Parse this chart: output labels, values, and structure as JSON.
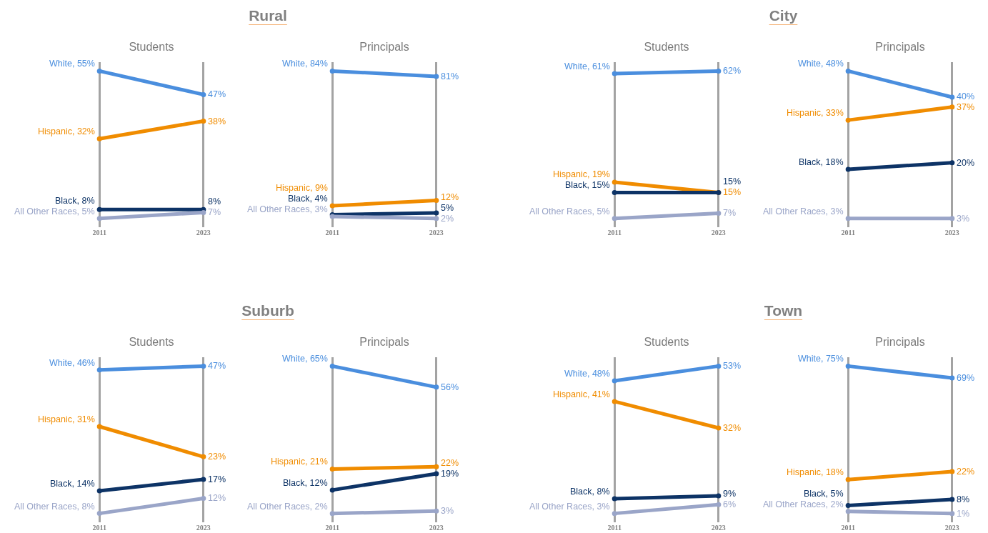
{
  "chart_data": [
    {
      "type": "line",
      "title": "Rural",
      "subtitle": "Students",
      "categories": [
        "2011",
        "2023"
      ],
      "grid": "x",
      "tick_labels": "x",
      "marker": "circle",
      "line_style": "solid",
      "legend": false,
      "series": [
        {
          "color": "#4a8ede",
          "values": [
            55,
            47
          ],
          "value_labels": [
            "White, 55%",
            "47%"
          ]
        },
        {
          "color": "#f08c00",
          "values": [
            32,
            38
          ],
          "value_labels": [
            "Hispanic, 32%",
            "38%"
          ]
        },
        {
          "color": "#0d3366",
          "values": [
            8,
            8
          ],
          "value_labels": [
            "Black, 8%",
            "8%"
          ]
        },
        {
          "color": "#9aa5c8",
          "values": [
            5,
            7
          ],
          "value_labels": [
            "All Other Races, 5%",
            "7%"
          ]
        }
      ]
    },
    {
      "type": "line",
      "subtitle": "Principals",
      "categories": [
        "2011",
        "2023"
      ],
      "grid": "x",
      "tick_labels": "x",
      "marker": "circle",
      "line_style": "solid",
      "legend": false,
      "series": [
        {
          "color": "#4a8ede",
          "values": [
            84,
            81
          ],
          "value_labels": [
            "White, 84%",
            "81%"
          ]
        },
        {
          "color": "#f08c00",
          "values": [
            9,
            12
          ],
          "value_labels": [
            "Hispanic, 9%",
            "12%"
          ]
        },
        {
          "color": "#0d3366",
          "values": [
            4,
            5
          ],
          "value_labels": [
            "Black, 4%",
            "5%"
          ]
        },
        {
          "color": "#9aa5c8",
          "values": [
            3,
            2
          ],
          "value_labels": [
            "All Other Races, 3%",
            "2%"
          ]
        }
      ]
    },
    {
      "type": "line",
      "title": "City",
      "subtitle": "Students",
      "categories": [
        "2011",
        "2023"
      ],
      "grid": "x",
      "tick_labels": "x",
      "marker": "circle",
      "line_style": "solid",
      "legend": false,
      "series": [
        {
          "color": "#4a8ede",
          "values": [
            61,
            62
          ],
          "value_labels": [
            "White, 61%",
            "62%"
          ]
        },
        {
          "color": "#f08c00",
          "values": [
            19,
            15
          ],
          "value_labels": [
            "Hispanic, 19%",
            "15%"
          ]
        },
        {
          "color": "#0d3366",
          "values": [
            15,
            15
          ],
          "value_labels": [
            "Black, 15%",
            "15%"
          ]
        },
        {
          "color": "#9aa5c8",
          "values": [
            5,
            7
          ],
          "value_labels": [
            "All Other Races, 5%",
            "7%"
          ]
        }
      ]
    },
    {
      "type": "line",
      "subtitle": "Principals",
      "categories": [
        "2011",
        "2023"
      ],
      "grid": "x",
      "tick_labels": "x",
      "marker": "circle",
      "line_style": "solid",
      "legend": false,
      "series": [
        {
          "color": "#4a8ede",
          "values": [
            48,
            40
          ],
          "value_labels": [
            "White, 48%",
            "40%"
          ]
        },
        {
          "color": "#f08c00",
          "values": [
            33,
            37
          ],
          "value_labels": [
            "Hispanic, 33%",
            "37%"
          ]
        },
        {
          "color": "#0d3366",
          "values": [
            18,
            20
          ],
          "value_labels": [
            "Black, 18%",
            "20%"
          ]
        },
        {
          "color": "#9aa5c8",
          "values": [
            3,
            3
          ],
          "value_labels": [
            "All Other Races, 3%",
            "3%"
          ]
        }
      ]
    },
    {
      "type": "line",
      "title": "Suburb",
      "subtitle": "Students",
      "categories": [
        "2011",
        "2023"
      ],
      "grid": "x",
      "tick_labels": "x",
      "marker": "circle",
      "line_style": "solid",
      "legend": false,
      "series": [
        {
          "color": "#4a8ede",
          "values": [
            46,
            47
          ],
          "value_labels": [
            "White, 46%",
            "47%"
          ]
        },
        {
          "color": "#f08c00",
          "values": [
            31,
            23
          ],
          "value_labels": [
            "Hispanic, 31%",
            "23%"
          ]
        },
        {
          "color": "#0d3366",
          "values": [
            14,
            17
          ],
          "value_labels": [
            "Black, 14%",
            "17%"
          ]
        },
        {
          "color": "#9aa5c8",
          "values": [
            8,
            12
          ],
          "value_labels": [
            "All Other Races, 8%",
            "12%"
          ]
        }
      ]
    },
    {
      "type": "line",
      "subtitle": "Principals",
      "categories": [
        "2011",
        "2023"
      ],
      "grid": "x",
      "tick_labels": "x",
      "marker": "circle",
      "line_style": "solid",
      "legend": false,
      "series": [
        {
          "color": "#4a8ede",
          "values": [
            65,
            56
          ],
          "value_labels": [
            "White, 65%",
            "56%"
          ]
        },
        {
          "color": "#f08c00",
          "values": [
            21,
            22
          ],
          "value_labels": [
            "Hispanic, 21%",
            "22%"
          ]
        },
        {
          "color": "#0d3366",
          "values": [
            12,
            19
          ],
          "value_labels": [
            "Black, 12%",
            "19%"
          ]
        },
        {
          "color": "#9aa5c8",
          "values": [
            2,
            3
          ],
          "value_labels": [
            "All Other Races, 2%",
            "3%"
          ]
        }
      ]
    },
    {
      "type": "line",
      "title": "Town",
      "subtitle": "Students",
      "categories": [
        "2011",
        "2023"
      ],
      "grid": "x",
      "tick_labels": "x",
      "marker": "circle",
      "line_style": "solid",
      "legend": false,
      "series": [
        {
          "color": "#4a8ede",
          "values": [
            48,
            53
          ],
          "value_labels": [
            "White, 48%",
            "53%"
          ]
        },
        {
          "color": "#f08c00",
          "values": [
            41,
            32
          ],
          "value_labels": [
            "Hispanic, 41%",
            "32%"
          ]
        },
        {
          "color": "#0d3366",
          "values": [
            8,
            9
          ],
          "value_labels": [
            "Black, 8%",
            "9%"
          ]
        },
        {
          "color": "#9aa5c8",
          "values": [
            3,
            6
          ],
          "value_labels": [
            "All Other Races, 3%",
            "6%"
          ]
        }
      ]
    },
    {
      "type": "line",
      "subtitle": "Principals",
      "categories": [
        "2011",
        "2023"
      ],
      "grid": "x",
      "tick_labels": "x",
      "marker": "circle",
      "line_style": "solid",
      "legend": false,
      "series": [
        {
          "color": "#4a8ede",
          "values": [
            75,
            69
          ],
          "value_labels": [
            "White, 75%",
            "69%"
          ]
        },
        {
          "color": "#f08c00",
          "values": [
            18,
            22
          ],
          "value_labels": [
            "Hispanic, 18%",
            "22%"
          ]
        },
        {
          "color": "#0d3366",
          "values": [
            5,
            8
          ],
          "value_labels": [
            "Black, 5%",
            "8%"
          ]
        },
        {
          "color": "#9aa5c8",
          "values": [
            2,
            1
          ],
          "value_labels": [
            "All Other Races, 2%",
            "1%"
          ]
        }
      ]
    }
  ]
}
